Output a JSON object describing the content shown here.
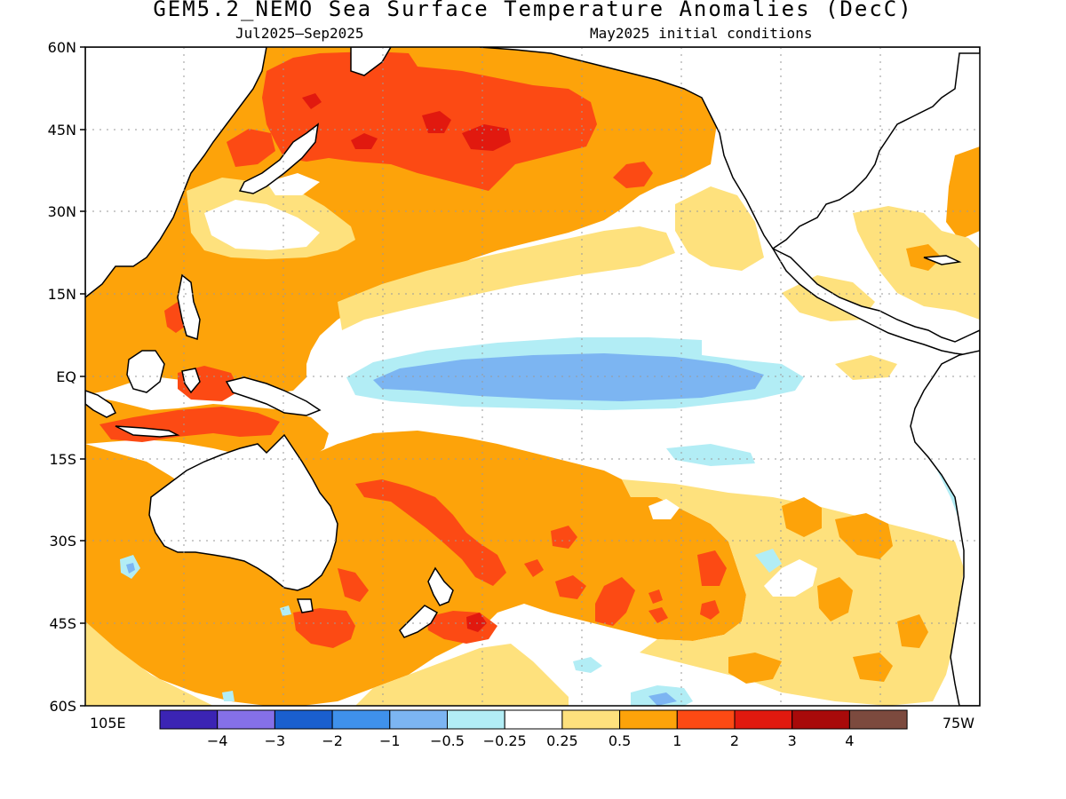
{
  "title": "GEM5.2_NEMO Sea Surface Temperature Anomalies (DecC)",
  "subtitle_left": "Jul2025–Sep2025",
  "subtitle_right": "May2025 initial conditions",
  "map": {
    "lon_left_label": "105E",
    "lon_right_label": "75W",
    "lat_labels": [
      "60N",
      "45N",
      "30N",
      "15N",
      "EQ",
      "15S",
      "30S",
      "45S",
      "60S"
    ]
  },
  "colorbar": {
    "colors": [
      "#3b24b4",
      "#8570e8",
      "#1a5fce",
      "#3f91eb",
      "#7cb5f2",
      "#b2edf5",
      "#ffffff",
      "#fee17d",
      "#fda30a",
      "#fc4a14",
      "#e1190f",
      "#a80a0a",
      "#7c4a3e"
    ],
    "labels": [
      "−4",
      "−3",
      "−2",
      "−1",
      "−0.5",
      "−0.25",
      "0.25",
      "0.5",
      "1",
      "2",
      "3",
      "4"
    ]
  }
}
